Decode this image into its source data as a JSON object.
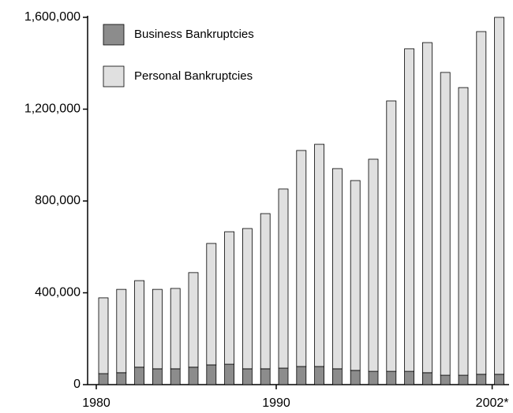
{
  "chart_data": {
    "type": "stacked_bar",
    "categories": [
      "1980",
      null,
      null,
      null,
      null,
      null,
      null,
      null,
      null,
      null,
      "1990",
      null,
      null,
      null,
      null,
      null,
      null,
      null,
      null,
      null,
      null,
      null,
      "2002*"
    ],
    "series": [
      {
        "name": "Business Bankruptcies",
        "color": "#8c8c8c",
        "values": [
          48000,
          52000,
          76000,
          69000,
          69000,
          76000,
          86000,
          89000,
          69000,
          69000,
          72000,
          79000,
          79000,
          69000,
          62000,
          58000,
          58000,
          58000,
          52000,
          41000,
          41000,
          45000,
          45000
        ]
      },
      {
        "name": "Personal Bankruptcies",
        "color": "#e0e0e0",
        "values": [
          330000,
          363000,
          377000,
          346000,
          350000,
          412000,
          529000,
          577000,
          611000,
          676000,
          780000,
          941000,
          968000,
          872000,
          827000,
          924000,
          1178000,
          1405000,
          1438000,
          1319000,
          1253000,
          1493000,
          1555000
        ]
      }
    ],
    "ylim": [
      0,
      1600000
    ],
    "yticks": [
      0,
      {
        "value": 400000,
        "label": "400,000"
      },
      {
        "value": 800000,
        "label": "800,000"
      },
      {
        "value": 1200000,
        "label": "1,200,000"
      },
      {
        "value": 1600000,
        "label": "1,600,000"
      }
    ],
    "legend": "upper left"
  }
}
